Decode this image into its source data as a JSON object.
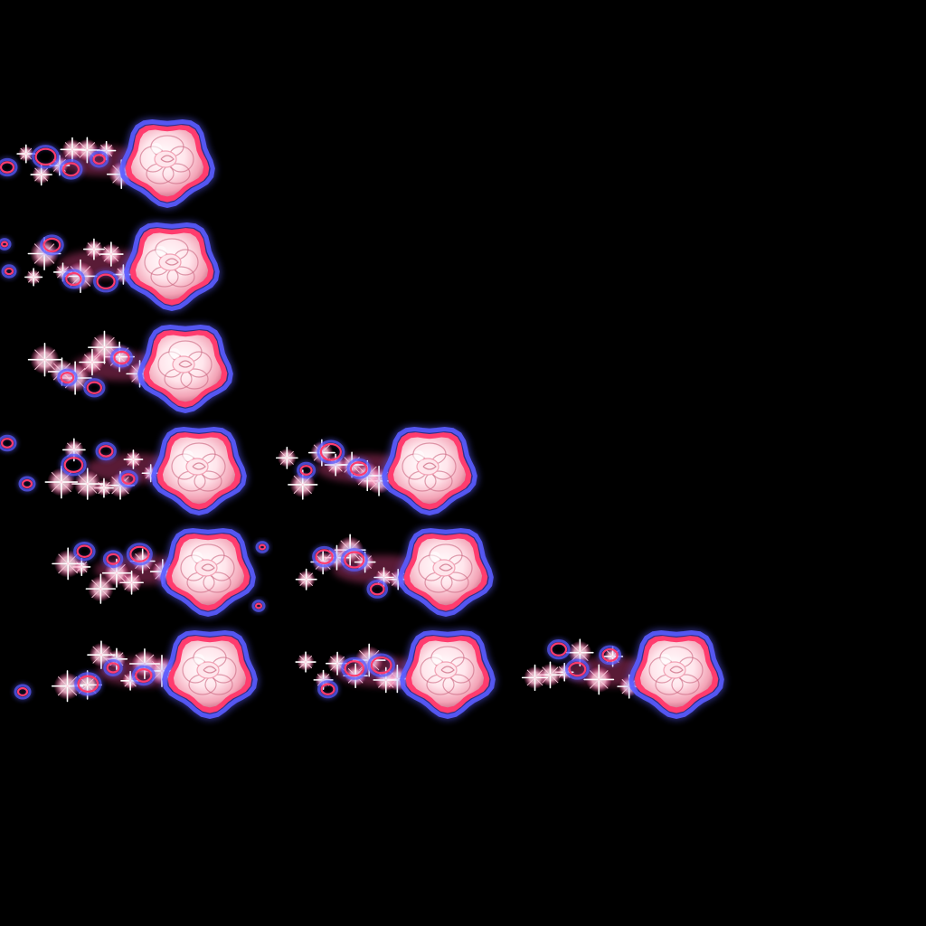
{
  "sprite_sheet": {
    "background_color": "#000000",
    "frame_counts_per_row": [
      1,
      1,
      1,
      2,
      2,
      3
    ],
    "rows": [
      {
        "frames": [
          {
            "icon": "rose-burst-icon"
          }
        ]
      },
      {
        "frames": [
          {
            "icon": "rose-burst-icon"
          }
        ]
      },
      {
        "frames": [
          {
            "icon": "rose-burst-icon"
          }
        ]
      },
      {
        "frames": [
          {
            "icon": "rose-burst-icon"
          },
          {
            "icon": "rose-burst-icon"
          }
        ]
      },
      {
        "frames": [
          {
            "icon": "rose-burst-icon"
          },
          {
            "icon": "rose-burst-icon"
          }
        ]
      },
      {
        "frames": [
          {
            "icon": "rose-burst-icon"
          },
          {
            "icon": "rose-burst-icon"
          },
          {
            "icon": "rose-burst-icon"
          }
        ]
      }
    ],
    "colors": {
      "outer_glow": "#5a5cff",
      "rim": "#ff3c6e",
      "petal_light": "#ffe6ec",
      "petal_mid": "#f3a3b6",
      "petal_shadow": "#c9647e",
      "sparkle": "#ffd0e0",
      "sparkle_core": "#ffffff",
      "sparkle_pink": "#ff4f9a"
    }
  }
}
